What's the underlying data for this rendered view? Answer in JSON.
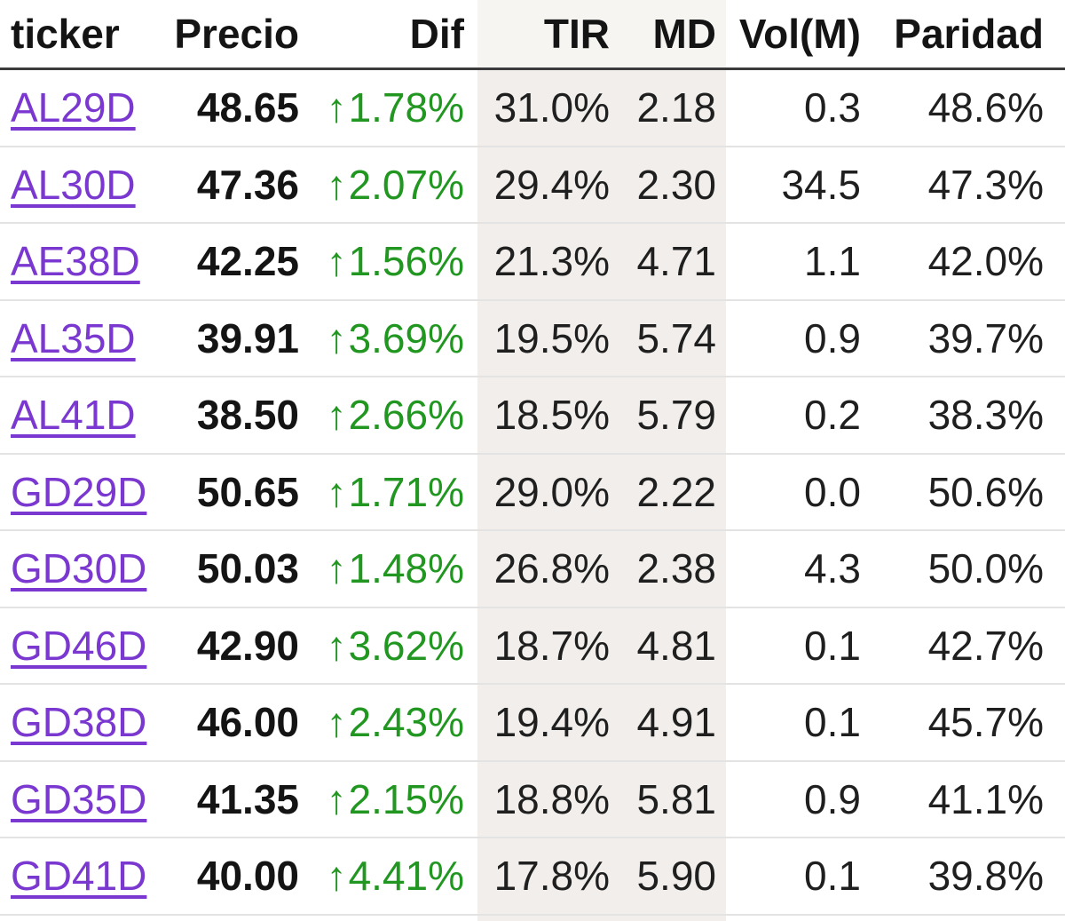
{
  "table": {
    "columns": [
      {
        "key": "ticker",
        "label": "ticker"
      },
      {
        "key": "precio",
        "label": "Precio"
      },
      {
        "key": "dif",
        "label": "Dif"
      },
      {
        "key": "tir",
        "label": "TIR"
      },
      {
        "key": "md",
        "label": "MD"
      },
      {
        "key": "vol",
        "label": "Vol(M)"
      },
      {
        "key": "paridad",
        "label": "Paridad"
      }
    ],
    "rows": [
      {
        "ticker": "AL29D",
        "precio": "48.65",
        "dif": "1.78%",
        "dif_direction": "up",
        "tir": "31.0%",
        "md": "2.18",
        "vol": "0.3",
        "paridad": "48.6%"
      },
      {
        "ticker": "AL30D",
        "precio": "47.36",
        "dif": "2.07%",
        "dif_direction": "up",
        "tir": "29.4%",
        "md": "2.30",
        "vol": "34.5",
        "paridad": "47.3%"
      },
      {
        "ticker": "AE38D",
        "precio": "42.25",
        "dif": "1.56%",
        "dif_direction": "up",
        "tir": "21.3%",
        "md": "4.71",
        "vol": "1.1",
        "paridad": "42.0%"
      },
      {
        "ticker": "AL35D",
        "precio": "39.91",
        "dif": "3.69%",
        "dif_direction": "up",
        "tir": "19.5%",
        "md": "5.74",
        "vol": "0.9",
        "paridad": "39.7%"
      },
      {
        "ticker": "AL41D",
        "precio": "38.50",
        "dif": "2.66%",
        "dif_direction": "up",
        "tir": "18.5%",
        "md": "5.79",
        "vol": "0.2",
        "paridad": "38.3%"
      },
      {
        "ticker": "GD29D",
        "precio": "50.65",
        "dif": "1.71%",
        "dif_direction": "up",
        "tir": "29.0%",
        "md": "2.22",
        "vol": "0.0",
        "paridad": "50.6%"
      },
      {
        "ticker": "GD30D",
        "precio": "50.03",
        "dif": "1.48%",
        "dif_direction": "up",
        "tir": "26.8%",
        "md": "2.38",
        "vol": "4.3",
        "paridad": "50.0%"
      },
      {
        "ticker": "GD46D",
        "precio": "42.90",
        "dif": "3.62%",
        "dif_direction": "up",
        "tir": "18.7%",
        "md": "4.81",
        "vol": "0.1",
        "paridad": "42.7%"
      },
      {
        "ticker": "GD38D",
        "precio": "46.00",
        "dif": "2.43%",
        "dif_direction": "up",
        "tir": "19.4%",
        "md": "4.91",
        "vol": "0.1",
        "paridad": "45.7%"
      },
      {
        "ticker": "GD35D",
        "precio": "41.35",
        "dif": "2.15%",
        "dif_direction": "up",
        "tir": "18.8%",
        "md": "5.81",
        "vol": "0.9",
        "paridad": "41.1%"
      },
      {
        "ticker": "GD41D",
        "precio": "40.00",
        "dif": "4.41%",
        "dif_direction": "up",
        "tir": "17.8%",
        "md": "5.90",
        "vol": "0.1",
        "paridad": "39.8%"
      }
    ]
  },
  "icons": {
    "up_arrow": "↑"
  },
  "colors": {
    "ticker_link": "#7a38d0",
    "dif_up_green": "#219721",
    "text": "#1f1f1f",
    "header_text": "#141414",
    "shaded_column_rows": "#f1eeeb",
    "shaded_column_header": "#f6f5f2",
    "header_border": "#3b3b3b",
    "row_separator": "#e3e3e3",
    "background": "#ffffff"
  }
}
